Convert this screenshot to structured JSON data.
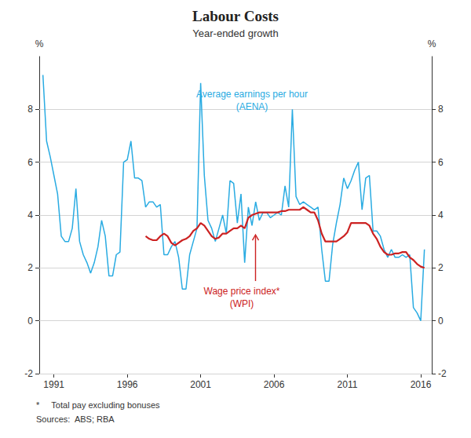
{
  "chart_data": {
    "type": "line",
    "title": "Labour Costs",
    "subtitle": "Year-ended growth",
    "ylabel": "%",
    "y2label": "%",
    "xlim": [
      1990.0,
      2016.75
    ],
    "xticks": [
      1991,
      1996,
      2001,
      2006,
      2011,
      2016
    ],
    "ylim": [
      -2,
      10
    ],
    "yticks": [
      -2,
      0,
      2,
      4,
      6,
      8
    ],
    "y2lim": [
      -2,
      10
    ],
    "y2ticks": [
      -2,
      0,
      2,
      4,
      6,
      8
    ],
    "grid": true,
    "series": [
      {
        "color": "#29ABE2",
        "x": [
          1990.25,
          1990.5,
          1990.75,
          1991.0,
          1991.25,
          1991.5,
          1991.75,
          1992.0,
          1992.25,
          1992.5,
          1992.75,
          1993.0,
          1993.25,
          1993.5,
          1993.75,
          1994.0,
          1994.25,
          1994.5,
          1994.75,
          1995.0,
          1995.25,
          1995.5,
          1995.75,
          1996.0,
          1996.25,
          1996.5,
          1996.75,
          1997.0,
          1997.25,
          1997.5,
          1997.75,
          1998.0,
          1998.25,
          1998.5,
          1998.75,
          1999.0,
          1999.25,
          1999.5,
          1999.75,
          2000.0,
          2000.25,
          2000.5,
          2000.75,
          2001.0,
          2001.25,
          2001.5,
          2001.75,
          2002.0,
          2002.25,
          2002.5,
          2002.75,
          2003.0,
          2003.25,
          2003.5,
          2003.75,
          2004.0,
          2004.25,
          2004.5,
          2004.75,
          2005.0,
          2005.25,
          2005.5,
          2005.75,
          2006.0,
          2006.25,
          2006.5,
          2006.75,
          2007.0,
          2007.25,
          2007.5,
          2007.75,
          2008.0,
          2008.25,
          2008.5,
          2008.75,
          2009.0,
          2009.25,
          2009.5,
          2009.75,
          2010.0,
          2010.25,
          2010.5,
          2010.75,
          2011.0,
          2011.25,
          2011.5,
          2011.75,
          2012.0,
          2012.25,
          2012.5,
          2012.75,
          2013.0,
          2013.25,
          2013.5,
          2013.75,
          2014.0,
          2014.25,
          2014.5,
          2014.75,
          2015.0,
          2015.25,
          2015.5,
          2015.75,
          2016.0,
          2016.25
        ],
        "values": [
          9.3,
          6.8,
          6.2,
          5.5,
          4.8,
          3.2,
          3.0,
          3.0,
          3.5,
          5.0,
          3.0,
          2.5,
          2.2,
          1.8,
          2.2,
          2.8,
          3.8,
          3.2,
          1.7,
          1.7,
          2.5,
          2.6,
          6.0,
          6.1,
          6.8,
          5.4,
          5.4,
          5.3,
          4.3,
          4.5,
          4.5,
          4.3,
          4.4,
          2.5,
          2.5,
          2.8,
          3.0,
          2.4,
          1.2,
          1.2,
          2.5,
          3.0,
          3.5,
          9.0,
          5.5,
          3.8,
          3.5,
          3.0,
          3.5,
          4.0,
          3.3,
          5.3,
          5.2,
          3.7,
          4.8,
          2.2,
          4.3,
          3.6,
          4.5,
          3.8,
          4.1,
          4.1,
          3.9,
          4.0,
          4.1,
          4.0,
          5.1,
          4.3,
          8.0,
          4.7,
          4.4,
          4.5,
          4.4,
          4.3,
          4.2,
          4.3,
          2.7,
          1.5,
          1.5,
          2.9,
          3.7,
          4.4,
          5.4,
          5.0,
          5.3,
          5.7,
          6.0,
          4.2,
          5.4,
          5.5,
          3.4,
          3.4,
          3.2,
          2.7,
          2.4,
          2.7,
          2.4,
          2.4,
          2.5,
          2.4,
          2.5,
          0.5,
          0.3,
          0.0,
          2.7
        ]
      },
      {
        "color": "#CC2222",
        "x": [
          1997.25,
          1997.5,
          1997.75,
          1998.0,
          1998.25,
          1998.5,
          1998.75,
          1999.0,
          1999.25,
          1999.5,
          1999.75,
          2000.0,
          2000.25,
          2000.5,
          2000.75,
          2001.0,
          2001.25,
          2001.5,
          2001.75,
          2002.0,
          2002.25,
          2002.5,
          2002.75,
          2003.0,
          2003.25,
          2003.5,
          2003.75,
          2004.0,
          2004.25,
          2004.5,
          2004.75,
          2005.0,
          2005.25,
          2005.5,
          2005.75,
          2006.0,
          2006.25,
          2006.5,
          2006.75,
          2007.0,
          2007.25,
          2007.5,
          2007.75,
          2008.0,
          2008.25,
          2008.5,
          2008.75,
          2009.0,
          2009.25,
          2009.5,
          2009.75,
          2010.0,
          2010.25,
          2010.5,
          2010.75,
          2011.0,
          2011.25,
          2011.5,
          2011.75,
          2012.0,
          2012.25,
          2012.5,
          2012.75,
          2013.0,
          2013.25,
          2013.5,
          2013.75,
          2014.0,
          2014.25,
          2014.5,
          2014.75,
          2015.0,
          2015.25,
          2015.5,
          2015.75,
          2016.0,
          2016.25
        ],
        "values": [
          3.2,
          3.1,
          3.05,
          3.05,
          3.2,
          3.3,
          3.2,
          2.95,
          2.85,
          2.95,
          3.05,
          3.1,
          3.2,
          3.4,
          3.5,
          3.7,
          3.6,
          3.4,
          3.2,
          3.1,
          3.15,
          3.3,
          3.3,
          3.4,
          3.5,
          3.5,
          3.6,
          3.5,
          3.9,
          4.0,
          4.05,
          4.1,
          4.1,
          4.1,
          4.1,
          4.1,
          4.1,
          4.15,
          4.15,
          4.2,
          4.2,
          4.2,
          4.2,
          4.3,
          4.2,
          4.1,
          4.1,
          3.8,
          3.3,
          3.0,
          3.0,
          3.0,
          3.0,
          3.1,
          3.2,
          3.35,
          3.7,
          3.7,
          3.7,
          3.7,
          3.7,
          3.6,
          3.3,
          3.1,
          2.8,
          2.6,
          2.5,
          2.5,
          2.55,
          2.55,
          2.6,
          2.6,
          2.4,
          2.3,
          2.15,
          2.05,
          2.0
        ]
      }
    ],
    "annotations": [
      {
        "lines": [
          "Average earnings per hour",
          "(AENA)"
        ],
        "color": "#29ABE2"
      },
      {
        "lines": [
          "Wage price index*",
          "(WPI)"
        ],
        "color": "#CC2222",
        "arrow": true
      }
    ],
    "footnotes": [
      "*     Total pay excluding bonuses",
      "Sources:  ABS; RBA"
    ]
  }
}
